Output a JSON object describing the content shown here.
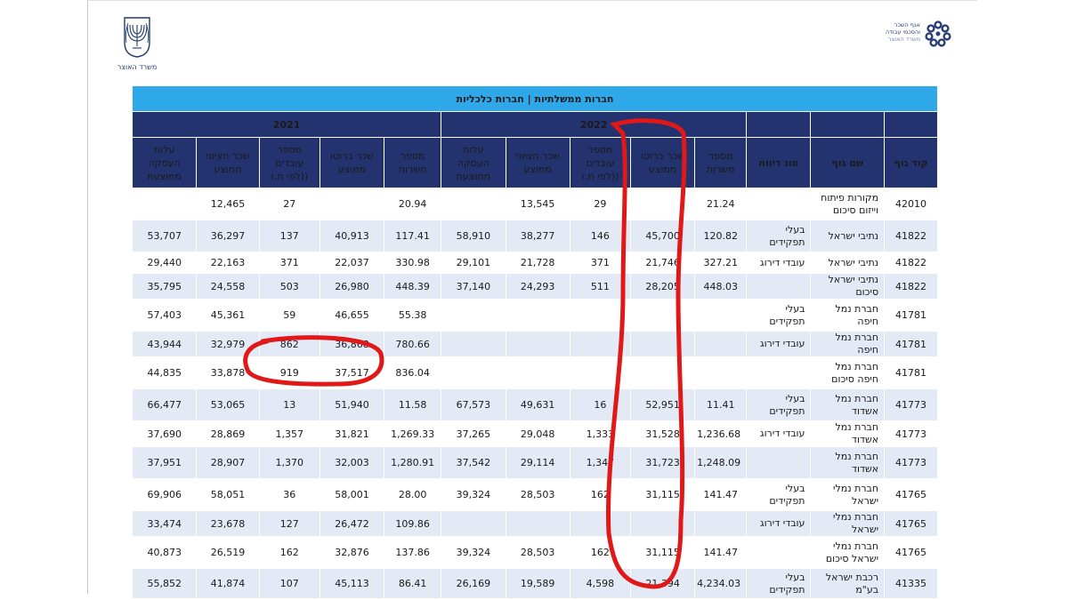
{
  "header": {
    "left_logo_caption": "משרד האוצר",
    "right_logo_text": [
      "אגף השכר",
      "והסכמי עבודה",
      "משרד האוצר"
    ]
  },
  "table": {
    "title": "חברות ממשלתיות | חברות כלכליות",
    "years": [
      "2022",
      "2021"
    ],
    "columns": [
      "קוד גוף",
      "שם גוף",
      "סוג דיווח",
      "מספר משרות",
      "שכר ברוטו ממוצע",
      "מספר עובדים ((לפי ת.ז",
      "שכר חציוני ממוצע",
      "עלות העסקה ממוצעת",
      "מספר משרות",
      "שכר ברוטו ממוצע",
      "מספר עובדים ((לפי ת.ז",
      "שכר חציוני ממוצע",
      "עלות העסקה ממוצעת"
    ],
    "rows": [
      [
        "42010",
        "מקורות פיתוח וייזום סיכום",
        "",
        "21.24",
        "",
        "29",
        "13,545",
        "",
        "20.94",
        "",
        "27",
        "12,465",
        ""
      ],
      [
        "41822",
        "נתיבי ישראל",
        "בעלי תפקידים",
        "120.82",
        "45,700",
        "146",
        "38,277",
        "58,910",
        "117.41",
        "40,913",
        "137",
        "36,297",
        "53,707"
      ],
      [
        "41822",
        "נתיבי ישראל",
        "עובדי דירוג",
        "327.21",
        "21,746",
        "371",
        "21,728",
        "29,101",
        "330.98",
        "22,037",
        "371",
        "22,163",
        "29,440"
      ],
      [
        "41822",
        "נתיבי ישראל סיכום",
        "",
        "448.03",
        "28,205",
        "511",
        "24,293",
        "37,140",
        "448.39",
        "26,980",
        "503",
        "24,558",
        "35,795"
      ],
      [
        "41781",
        "חברת נמל חיפה",
        "בעלי תפקידים",
        "",
        "",
        "",
        "",
        "",
        "55.38",
        "46,655",
        "59",
        "45,361",
        "57,403"
      ],
      [
        "41781",
        "חברת נמל חיפה",
        "עובדי דירוג",
        "",
        "",
        "",
        "",
        "",
        "780.66",
        "36,868",
        "862",
        "32,979",
        "43,944"
      ],
      [
        "41781",
        "חברת נמל חיפה סיכום",
        "",
        "",
        "",
        "",
        "",
        "",
        "836.04",
        "37,517",
        "919",
        "33,878",
        "44,835"
      ],
      [
        "41773",
        "חברת נמל אשדוד",
        "בעלי תפקידים",
        "11.41",
        "52,951",
        "16",
        "49,631",
        "67,573",
        "11.58",
        "51,940",
        "13",
        "53,065",
        "66,477"
      ],
      [
        "41773",
        "חברת נמל אשדוד",
        "עובדי דירוג",
        "1,236.68",
        "31,528",
        "1,333",
        "29,048",
        "37,265",
        "1,269.33",
        "31,821",
        "1,357",
        "28,869",
        "37,690"
      ],
      [
        "41773",
        "חברת נמל אשדוד",
        "",
        "1,248.09",
        "31,723",
        "1,347",
        "29,114",
        "37,542",
        "1,280.91",
        "32,003",
        "1,370",
        "28,907",
        "37,951"
      ],
      [
        "41765",
        "חברת נמלי ישראל",
        "בעלי תפקידים",
        "141.47",
        "31,115",
        "162",
        "28,503",
        "39,324",
        "28.00",
        "58,001",
        "36",
        "58,051",
        "69,906"
      ],
      [
        "41765",
        "חברת נמלי ישראל",
        "עובדי דירוג",
        "",
        "",
        "",
        "",
        "",
        "109.86",
        "26,472",
        "127",
        "23,678",
        "33,474"
      ],
      [
        "41765",
        "חברת נמלי ישראל סיכום",
        "",
        "141.47",
        "31,115",
        "162",
        "28,503",
        "39,324",
        "137.86",
        "32,876",
        "162",
        "26,519",
        "40,873"
      ],
      [
        "41335",
        "רכבת ישראל בע\"מ",
        "בעלי תפקידים",
        "4,234.03",
        "21,394",
        "4,598",
        "19,589",
        "26,169",
        "86.41",
        "45,113",
        "107",
        "41,874",
        "55,852"
      ]
    ],
    "row_heights": [
      36,
      36,
      24,
      24,
      36,
      24,
      36,
      36,
      24,
      36,
      36,
      24,
      36,
      34
    ],
    "row_shading": [
      "plain",
      "alt",
      "plain",
      "alt",
      "plain",
      "alt",
      "plain",
      "alt",
      "plain",
      "alt",
      "plain",
      "alt",
      "plain",
      "alt"
    ]
  },
  "colors": {
    "title_bar": "#2ea8e8",
    "header_bg": "#23336f",
    "alt_row": "#e3eaf6",
    "annotation_red": "#e01818"
  }
}
